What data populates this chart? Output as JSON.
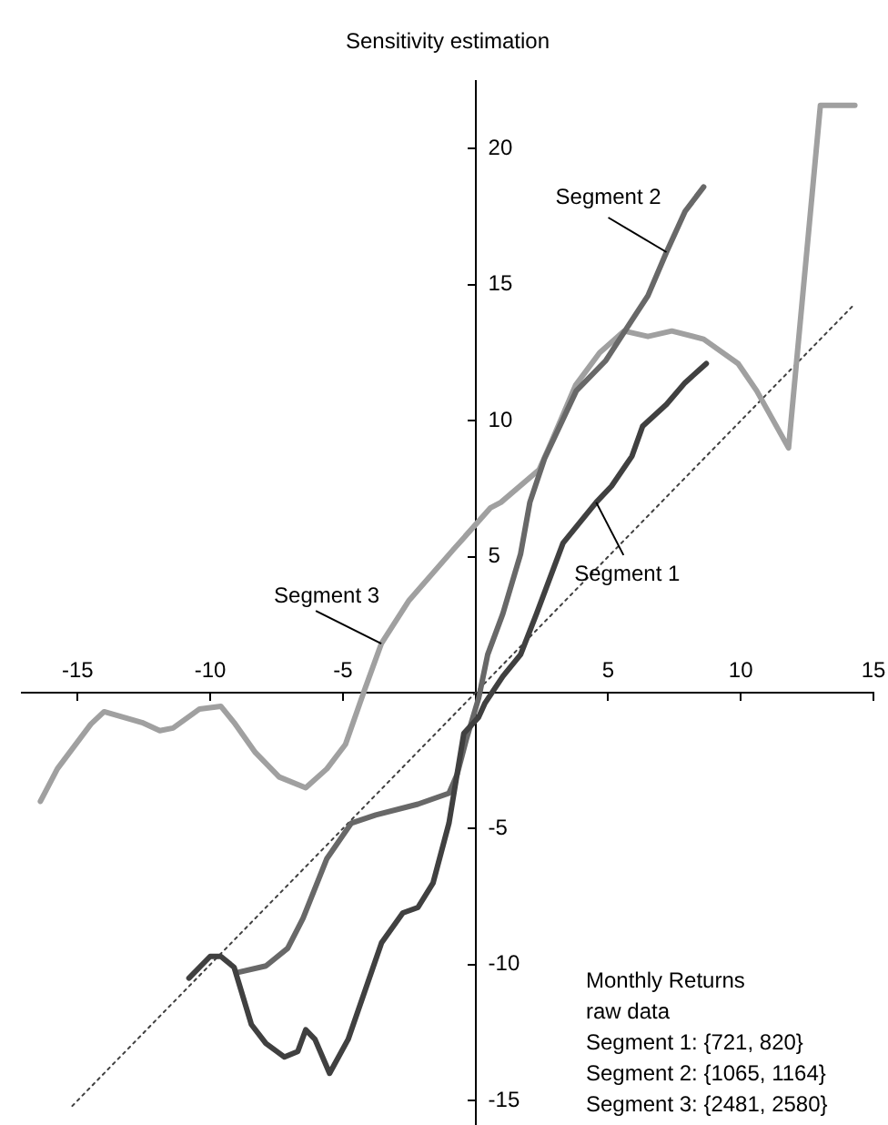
{
  "chart_data": {
    "type": "line",
    "title": "Sensitivity estimation",
    "xlim": [
      -17.1,
      15
    ],
    "ylim": [
      -15.9,
      22.5
    ],
    "xticks": [
      -15,
      -10,
      -5,
      5,
      10,
      15
    ],
    "yticks": [
      -15,
      -10,
      -5,
      5,
      10,
      15,
      20
    ],
    "grid": false,
    "legend": false,
    "marker": "none",
    "series": [
      {
        "name": "Segment 1",
        "color": "#404040",
        "x": [
          -10.8,
          -10.0,
          -9.6,
          -9.1,
          -8.45,
          -7.9,
          -7.2,
          -6.7,
          -6.4,
          -6.05,
          -5.5,
          -4.8,
          -3.54,
          -2.74,
          -2.17,
          -1.6,
          -1.0,
          -0.44,
          0.12,
          0.35,
          1.03,
          1.7,
          2.3,
          3.3,
          4.55,
          5.13,
          5.9,
          6.3,
          7.2,
          7.9,
          8.7
        ],
        "values": [
          -10.5,
          -9.7,
          -9.7,
          -10.1,
          -12.2,
          -12.9,
          -13.4,
          -13.2,
          -12.4,
          -12.75,
          -14.0,
          -12.75,
          -9.2,
          -8.1,
          -7.9,
          -7.0,
          -4.8,
          -1.5,
          -0.9,
          -0.4,
          0.6,
          1.4,
          2.9,
          5.5,
          7.0,
          7.6,
          8.7,
          9.8,
          10.6,
          11.4,
          12.1
        ]
      },
      {
        "name": "Segment 2",
        "color": "#686868",
        "x": [
          -9.0,
          -7.9,
          -7.08,
          -6.5,
          -5.6,
          -4.68,
          -3.76,
          -2.17,
          -1.0,
          -0.69,
          -0.34,
          0.12,
          0.46,
          1.03,
          1.7,
          2.05,
          2.6,
          3.8,
          4.9,
          5.9,
          6.5,
          7.2,
          7.9,
          8.6
        ],
        "values": [
          -10.3,
          -10.05,
          -9.4,
          -8.3,
          -6.1,
          -4.8,
          -4.5,
          -4.1,
          -3.7,
          -3.0,
          -1.7,
          -0.2,
          1.4,
          2.9,
          5.1,
          7.0,
          8.6,
          11.1,
          12.2,
          13.7,
          14.6,
          16.2,
          17.7,
          18.6
        ]
      },
      {
        "name": "Segment 3",
        "color": "#a0a0a0",
        "x": [
          -16.4,
          -15.76,
          -14.5,
          -14.0,
          -12.57,
          -11.9,
          -11.4,
          -10.4,
          -9.6,
          -9.1,
          -8.3,
          -7.4,
          -6.4,
          -5.6,
          -4.9,
          -4.2,
          -3.55,
          -2.5,
          -0.8,
          0.57,
          0.96,
          2.4,
          2.85,
          3.77,
          4.68,
          5.6,
          6.5,
          7.4,
          8.6,
          9.9,
          10.6,
          11.8,
          13.0,
          14.3
        ],
        "values": [
          -4.0,
          -2.8,
          -1.16,
          -0.7,
          -1.1,
          -1.4,
          -1.3,
          -0.6,
          -0.5,
          -1.1,
          -2.2,
          -3.1,
          -3.5,
          -2.8,
          -1.9,
          0.05,
          1.8,
          3.4,
          5.3,
          6.8,
          7.0,
          8.2,
          9.2,
          11.3,
          12.5,
          13.3,
          13.1,
          13.3,
          13.0,
          12.1,
          11.1,
          9.0,
          21.6,
          21.6
        ]
      },
      {
        "color": "#404040",
        "line_style": "dotted",
        "x": [
          -15.2,
          14.2
        ],
        "values": [
          -15.2,
          14.2
        ]
      }
    ],
    "annotations": [
      "Monthly Returns",
      "raw data",
      "Segment 1: {721, 820}",
      "Segment 2: {1065, 1164}",
      "Segment 3: {2481, 2580}"
    ]
  }
}
